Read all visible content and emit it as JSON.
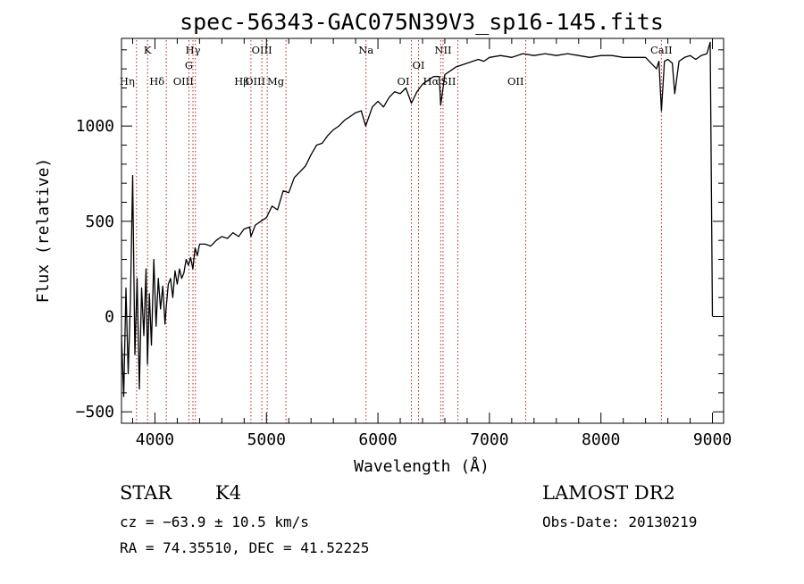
{
  "chart_data": {
    "type": "line",
    "title": "spec-56343-GAC075N39V3_sp16-145.fits",
    "xlabel": "Wavelength (Å)",
    "ylabel": "Flux (relative)",
    "xlim": [
      3700,
      9100
    ],
    "ylim": [
      -560,
      1460
    ],
    "x_ticks": [
      4000,
      5000,
      6000,
      7000,
      8000,
      9000
    ],
    "y_ticks": [
      -500,
      0,
      500,
      1000
    ],
    "x_tick_labels": [
      "4000",
      "5000",
      "6000",
      "7000",
      "8000",
      "9000"
    ],
    "y_tick_labels": [
      "−500",
      "0",
      "500",
      "1000"
    ],
    "grid": false,
    "series": [
      {
        "x": [
          3700,
          3720,
          3740,
          3760,
          3780,
          3800,
          3820,
          3840,
          3860,
          3880,
          3900,
          3920,
          3933,
          3950,
          3968,
          3990,
          4010,
          4030,
          4050,
          4070,
          4090,
          4101,
          4120,
          4140,
          4160,
          4180,
          4200,
          4220,
          4240,
          4260,
          4280,
          4300,
          4320,
          4340,
          4360,
          4380,
          4400,
          4450,
          4500,
          4550,
          4600,
          4650,
          4700,
          4750,
          4800,
          4850,
          4861,
          4900,
          4950,
          5000,
          5050,
          5100,
          5150,
          5200,
          5250,
          5300,
          5350,
          5400,
          5450,
          5500,
          5550,
          5600,
          5650,
          5700,
          5750,
          5800,
          5850,
          5890,
          5950,
          6000,
          6050,
          6100,
          6150,
          6200,
          6250,
          6300,
          6350,
          6400,
          6450,
          6500,
          6550,
          6563,
          6600,
          6650,
          6700,
          6750,
          6800,
          6850,
          6900,
          6950,
          7000,
          7100,
          7200,
          7300,
          7400,
          7500,
          7600,
          7700,
          7800,
          7900,
          8000,
          8100,
          8200,
          8300,
          8400,
          8498,
          8520,
          8542,
          8570,
          8600,
          8640,
          8662,
          8700,
          8750,
          8800,
          8850,
          8900,
          8950,
          8980,
          9000
        ],
        "y": [
          -100,
          -420,
          150,
          -300,
          80,
          740,
          -200,
          200,
          -380,
          150,
          -100,
          250,
          -250,
          120,
          -150,
          300,
          -50,
          200,
          40,
          160,
          -40,
          50,
          170,
          200,
          100,
          240,
          170,
          250,
          200,
          230,
          300,
          270,
          310,
          250,
          360,
          320,
          380,
          380,
          370,
          400,
          420,
          410,
          440,
          420,
          460,
          470,
          420,
          480,
          500,
          520,
          580,
          560,
          660,
          650,
          730,
          760,
          790,
          850,
          900,
          910,
          950,
          980,
          1000,
          1030,
          1050,
          1070,
          1080,
          1000,
          1100,
          1130,
          1100,
          1150,
          1180,
          1170,
          1200,
          1120,
          1180,
          1220,
          1240,
          1260,
          1260,
          1110,
          1270,
          1290,
          1310,
          1320,
          1330,
          1340,
          1350,
          1340,
          1360,
          1370,
          1360,
          1380,
          1370,
          1380,
          1370,
          1380,
          1370,
          1360,
          1370,
          1370,
          1360,
          1360,
          1360,
          1300,
          1340,
          1080,
          1340,
          1350,
          1330,
          1170,
          1340,
          1360,
          1370,
          1350,
          1370,
          1380,
          1440,
          0
        ]
      }
    ],
    "line_markers": [
      {
        "label": "Hη",
        "wave": 3835,
        "row": 2
      },
      {
        "label": "K",
        "wave": 3934,
        "row": 0
      },
      {
        "label": "Hδ",
        "wave": 4102,
        "row": 3
      },
      {
        "label": "Hγ",
        "wave": 4341,
        "row": 0
      },
      {
        "label": "G",
        "wave": 4305,
        "row": 1
      },
      {
        "label": "OIII",
        "wave": 4363,
        "row": 3
      },
      {
        "label": "OIII",
        "wave": 4959,
        "row": 0
      },
      {
        "label": "Hβ",
        "wave": 4861,
        "row": 2
      },
      {
        "label": "OIII",
        "wave": 5007,
        "row": 3
      },
      {
        "label": "Mg",
        "wave": 5175,
        "row": 2
      },
      {
        "label": "Na",
        "wave": 5893,
        "row": 0
      },
      {
        "label": "OI",
        "wave": 6300,
        "row": 3
      },
      {
        "label": "OI",
        "wave": 6364,
        "row": 1
      },
      {
        "label": "NII",
        "wave": 6584,
        "row": 0
      },
      {
        "label": "Hα",
        "wave": 6563,
        "row": 3
      },
      {
        "label": "SII",
        "wave": 6716,
        "row": 2
      },
      {
        "label": "OII",
        "wave": 7325,
        "row": 3
      },
      {
        "label": "CaII",
        "wave": 8542,
        "row": 0
      }
    ]
  },
  "info": {
    "class": "STAR",
    "subclass": "K4",
    "survey": "LAMOST DR2",
    "cz": "cz = −63.9 ± 10.5 km/s",
    "obs_date": "Obs-Date: 20130219",
    "coords": "RA =  74.35510, DEC =  41.52225"
  }
}
